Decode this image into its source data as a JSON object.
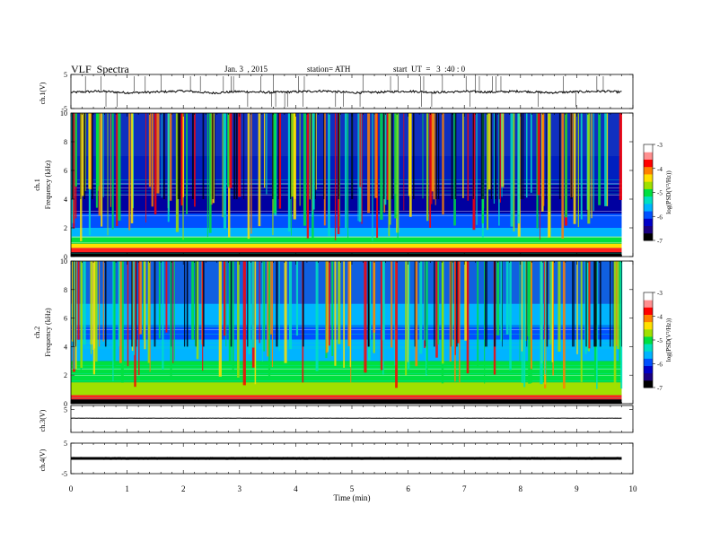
{
  "header": {
    "title": "VLF  Spectra",
    "date": "Jan. 3  , 2015",
    "station": "station= ATH",
    "start": "start  UT  =   3  :40 : 0"
  },
  "chart_data": [
    {
      "type": "line",
      "panel": "ch1_waveform",
      "ylabel": "ch.1(V)",
      "ylim": [
        -5,
        5
      ],
      "yticks": [
        "5",
        "-5"
      ],
      "x": [
        0,
        0.5,
        1,
        1.5,
        2,
        2.5,
        3,
        3.5,
        4,
        4.5,
        5,
        5.5,
        6,
        6.5,
        7,
        7.5,
        8,
        8.5,
        9,
        9.5,
        9.8
      ],
      "values": [
        -0.3,
        0.1,
        -0.4,
        -0.2,
        0.2,
        -0.5,
        0.0,
        -0.3,
        -0.1,
        0.2,
        -0.4,
        -0.2,
        0.1,
        -0.3,
        0.0,
        -0.2,
        0.1,
        -0.4,
        -0.1,
        0.1,
        -0.2
      ],
      "color": "#000000"
    },
    {
      "type": "heatmap",
      "panel": "ch1_spectrogram",
      "ylabel": "ch.1\nFrequency  (kHz)",
      "ylim": [
        0,
        10
      ],
      "yticks": [
        "10",
        "8",
        "6",
        "4",
        "2",
        "0"
      ],
      "colorbar": {
        "label": "log(PSD(V²/Hz))",
        "range": [
          -7,
          -3
        ],
        "ticks": [
          "-3",
          "-4",
          "-5",
          "-6",
          "-7"
        ]
      }
    },
    {
      "type": "heatmap",
      "panel": "ch2_spectrogram",
      "ylabel": "ch.2\nFrequency  (kHz)",
      "ylim": [
        0,
        10
      ],
      "yticks": [
        "10",
        "8",
        "6",
        "4",
        "2",
        "0"
      ],
      "colorbar": {
        "label": "log(PSD(V²/Hz))",
        "range": [
          -7,
          -3
        ],
        "ticks": [
          "-3",
          "-4",
          "-5",
          "-6",
          "-7"
        ]
      }
    },
    {
      "type": "line",
      "panel": "ch3_waveform",
      "ylabel": "ch.3(V)",
      "ylim": [
        -5,
        5
      ],
      "yticks": [
        "5"
      ],
      "x": [
        0,
        2,
        4,
        6,
        8,
        9.8
      ],
      "values": [
        0.3,
        0.3,
        0.3,
        0.3,
        0.3,
        0.3
      ],
      "color": "#000000"
    },
    {
      "type": "line",
      "panel": "ch4_waveform",
      "ylabel": "ch.4(V)",
      "ylim": [
        -5,
        5
      ],
      "yticks": [
        "5",
        "-5"
      ],
      "x": [
        0,
        2,
        4,
        6,
        8,
        9.8
      ],
      "values": [
        0,
        0,
        0,
        0,
        0,
        0
      ],
      "color": "#000000"
    }
  ],
  "xaxis": {
    "label": "Time  (min)",
    "range": [
      0,
      10
    ],
    "ticks": [
      "0",
      "1",
      "2",
      "3",
      "4",
      "5",
      "6",
      "7",
      "8",
      "9",
      "10"
    ]
  },
  "colorscale": [
    "#000000",
    "#1a0080",
    "#0000c8",
    "#0050ff",
    "#00b4ff",
    "#00e0c0",
    "#00e040",
    "#a0e000",
    "#ffe000",
    "#ff8000",
    "#ff0000",
    "#ff9090",
    "#ffffff"
  ]
}
